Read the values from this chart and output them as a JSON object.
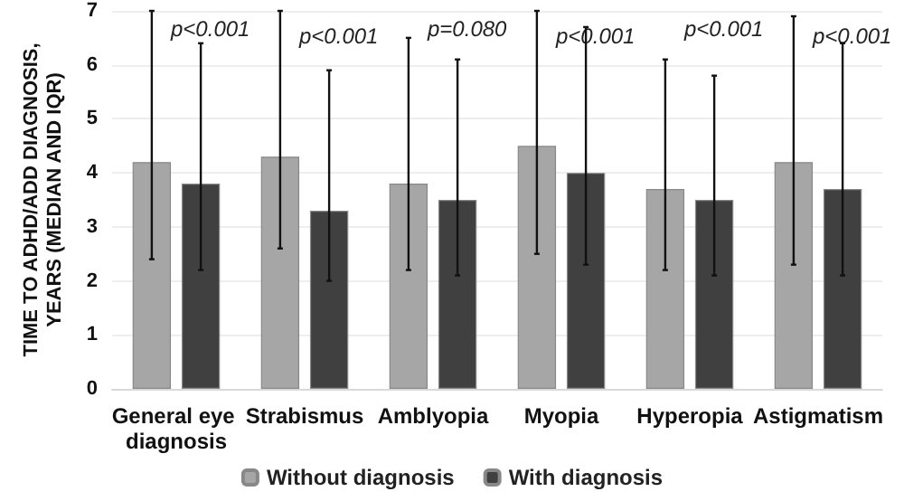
{
  "chart_data": {
    "type": "bar",
    "ylabel": "TIME TO ADHD/ADD DIAGNOSIS, YEARS (MEDIAN AND IQR)",
    "categories": [
      "General eye diagnosis",
      "Strabismus",
      "Amblyopia",
      "Myopia",
      "Hyperopia",
      "Astigmatism"
    ],
    "series": [
      {
        "name": "Without diagnosis",
        "color": "#a6a6a6",
        "values": [
          4.2,
          4.3,
          3.8,
          4.5,
          3.7,
          4.2
        ],
        "errors": [
          [
            2.4,
            7.0
          ],
          [
            2.6,
            7.0
          ],
          [
            2.2,
            6.5
          ],
          [
            2.5,
            7.0
          ],
          [
            2.2,
            6.1
          ],
          [
            2.3,
            6.9
          ]
        ]
      },
      {
        "name": "With diagnosis",
        "color": "#404040",
        "values": [
          3.8,
          3.3,
          3.5,
          4.0,
          3.5,
          3.7
        ],
        "errors": [
          [
            2.2,
            6.4
          ],
          [
            2.0,
            5.9
          ],
          [
            2.1,
            6.1
          ],
          [
            2.3,
            6.7
          ],
          [
            2.1,
            5.8
          ],
          [
            2.1,
            6.4
          ]
        ]
      }
    ],
    "ylim": [
      0,
      7
    ],
    "yticks": [
      0,
      1,
      2,
      3,
      4,
      5,
      6,
      7
    ],
    "grid": "y",
    "legend": "bottom",
    "annotations": [
      "p<0.001",
      "p<0.001",
      "p=0.080",
      "p<0.001",
      "p<0.001",
      "p<0.001"
    ]
  }
}
